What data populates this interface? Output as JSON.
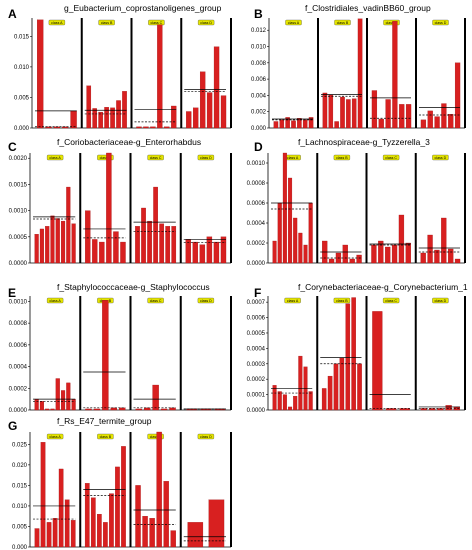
{
  "chart_data": [
    {
      "id": "A",
      "type": "bar",
      "title": "g_Eubacterium_coprostanoligenes_group",
      "ylim": [
        0,
        0.018
      ],
      "yticks": [
        "0.000",
        "0.005",
        "0.010",
        "0.015"
      ],
      "ytick_values": [
        0,
        0.005,
        0.01,
        0.015
      ],
      "groups": [
        {
          "label": "class A",
          "values": [
            0.0177,
            0.0002,
            0.0002,
            0.0002,
            0.0028
          ],
          "mean": 0.0028,
          "median": 0.0002
        },
        {
          "label": "class B",
          "values": [
            0.0069,
            0.0032,
            0.0026,
            0.0034,
            0.0033,
            0.0045,
            0.006
          ],
          "mean": 0.0029,
          "median": 0.0023
        },
        {
          "label": "class C",
          "values": [
            0.0002,
            0.0002,
            0.0002,
            0.0169,
            0.0002,
            0.0036
          ],
          "mean": 0.003,
          "median": 0.001
        },
        {
          "label": "class D",
          "values": [
            0.0027,
            0.0033,
            0.0092,
            0.0058,
            0.0133,
            0.0053
          ],
          "mean": 0.0063,
          "median": 0.006
        }
      ]
    },
    {
      "id": "B",
      "type": "bar",
      "title": "f_Clostridiales_vadinBB60_group",
      "ylim": [
        0,
        0.0135
      ],
      "yticks": [
        "0.000",
        "0.002",
        "0.004",
        "0.006",
        "0.008",
        "0.010",
        "0.012"
      ],
      "ytick_values": [
        0,
        0.002,
        0.004,
        0.006,
        0.008,
        0.01,
        0.012
      ],
      "groups": [
        {
          "label": "class A",
          "values": [
            0.0008,
            0.001,
            0.0013,
            0.0009,
            0.0012,
            0.001,
            0.0013
          ],
          "mean": 0.0011,
          "median": 0.001
        },
        {
          "label": "class B",
          "values": [
            0.0043,
            0.0041,
            0.0008,
            0.0038,
            0.0035,
            0.0036,
            0.0134
          ],
          "mean": 0.0041,
          "median": 0.0039
        },
        {
          "label": "class C",
          "values": [
            0.0046,
            0.0011,
            0.0035,
            0.0131,
            0.0029,
            0.0029
          ],
          "mean": 0.0037,
          "median": 0.0012
        },
        {
          "label": "class D",
          "values": [
            0.001,
            0.0021,
            0.0014,
            0.003,
            0.0017,
            0.008
          ],
          "mean": 0.0025,
          "median": 0.0016
        }
      ]
    },
    {
      "id": "C",
      "type": "bar",
      "title": "f_Coriobacteriaceae-g_Enterorhabdus",
      "ylim": [
        0,
        0.0021
      ],
      "yticks": [
        "0.0000",
        "0.0005",
        "0.0010",
        "0.0015",
        "0.0020"
      ],
      "ytick_values": [
        0,
        0.0005,
        0.001,
        0.0015,
        0.002
      ],
      "groups": [
        {
          "label": "class A",
          "values": [
            0.00055,
            0.00065,
            0.0007,
            0.0009,
            0.00085,
            0.0008,
            0.00145,
            0.00075
          ],
          "mean": 0.00088,
          "median": 0.00084
        },
        {
          "label": "class B",
          "values": [
            0.001,
            0.00045,
            0.0004,
            0.0021,
            0.0006,
            0.0004
          ],
          "mean": 0.00065,
          "median": 0.00048
        },
        {
          "label": "class C",
          "values": [
            0.0007,
            0.00105,
            0.0008,
            0.00145,
            0.00075,
            0.0007,
            0.0007
          ],
          "mean": 0.00078,
          "median": 0.0006
        },
        {
          "label": "class D",
          "values": [
            0.00045,
            0.0004,
            0.00035,
            0.0005,
            0.0004,
            0.0005
          ],
          "mean": 0.00045,
          "median": 0.00039
        }
      ]
    },
    {
      "id": "D",
      "type": "bar",
      "title": "f_Lachnospiraceae-g_Tyzzerella_3",
      "ylim": [
        0,
        0.0011
      ],
      "yticks": [
        "0.0000",
        "0.0002",
        "0.0004",
        "0.0006",
        "0.0008",
        "0.0010"
      ],
      "ytick_values": [
        0,
        0.0002,
        0.0004,
        0.0006,
        0.0008,
        0.001
      ],
      "groups": [
        {
          "label": "class A",
          "values": [
            0.00022,
            0.0006,
            0.0011,
            0.00085,
            0.00045,
            0.0003,
            0.00018,
            0.0006
          ],
          "mean": 0.0006,
          "median": 0.00054
        },
        {
          "label": "class B",
          "values": [
            0.00022,
            4e-05,
            0.0001,
            0.00018,
            4e-05,
            8e-05
          ],
          "mean": 0.00011,
          "median": 5e-05
        },
        {
          "label": "class C",
          "values": [
            0.00018,
            0.00022,
            0.00016,
            0.00018,
            0.00048,
            0.0002
          ],
          "mean": 0.00019,
          "median": 0.00018
        },
        {
          "label": "class D",
          "values": [
            0.0001,
            0.00028,
            0.00013,
            0.00045,
            0.00014,
            4e-05
          ],
          "mean": 0.00015,
          "median": 0.00011
        }
      ]
    },
    {
      "id": "E",
      "type": "bar",
      "title": "f_Staphylococcaceae-g_Staphylococcus",
      "ylim": [
        0,
        0.00105
      ],
      "yticks": [
        "0.0000",
        "0.0002",
        "0.0004",
        "0.0006",
        "0.0008",
        "0.0010"
      ],
      "ytick_values": [
        0,
        0.0002,
        0.0004,
        0.0006,
        0.0008,
        0.001
      ],
      "groups": [
        {
          "label": "class A",
          "values": [
            0.0001,
            8e-05,
            1e-05,
            1e-05,
            0.00029,
            0.00018,
            0.00025,
            0.0001
          ],
          "mean": 0.0001,
          "median": 8e-05
        },
        {
          "label": "class B",
          "values": [
            1e-05,
            1e-05,
            0.00101,
            2e-05,
            2e-05
          ],
          "mean": 0.00035,
          "median": 2e-05
        },
        {
          "label": "class C",
          "values": [
            1e-05,
            2e-05,
            0.00023,
            1e-05,
            2e-05
          ],
          "mean": 0.0001,
          "median": 2e-05
        },
        {
          "label": "class D",
          "values": [
            1e-05,
            1e-05,
            1e-05
          ],
          "mean": 1e-05,
          "median": 1e-05
        }
      ]
    },
    {
      "id": "F",
      "type": "bar",
      "title": "f_Corynebacteriaceae-g_Corynebacterium_1",
      "ylim": [
        0,
        0.00074
      ],
      "yticks": [
        "0.0000",
        "0.0001",
        "0.0002",
        "0.0003",
        "0.0004",
        "0.0005",
        "0.0006",
        "0.0007"
      ],
      "ytick_values": [
        0,
        0.0001,
        0.0002,
        0.0003,
        0.0004,
        0.0005,
        0.0006,
        0.0007
      ],
      "groups": [
        {
          "label": "class A",
          "values": [
            0.00016,
            0.00012,
            0.0001,
            2e-05,
            9e-05,
            0.00035,
            0.00028,
            0.00012
          ],
          "mean": 0.00014,
          "median": 0.00011
        },
        {
          "label": "class B",
          "values": [
            0.00014,
            0.00022,
            0.0003,
            0.00034,
            0.00069,
            0.00073,
            0.0003
          ],
          "mean": 0.00034,
          "median": 0.0003
        },
        {
          "label": "class C",
          "values": [
            0.00064,
            1e-05,
            1e-05
          ],
          "mean": 0.0001,
          "median": 1e-05
        },
        {
          "label": "class D",
          "values": [
            1e-05,
            1e-05,
            1e-05,
            3e-05,
            2e-05
          ],
          "mean": 2e-05,
          "median": 1e-05
        }
      ]
    },
    {
      "id": "G",
      "type": "bar",
      "title": "f_Rs_E47_termite_group",
      "ylim": [
        0,
        0.028
      ],
      "yticks": [
        "0.000",
        "0.005",
        "0.010",
        "0.015",
        "0.020",
        "0.025"
      ],
      "ytick_values": [
        0,
        0.005,
        0.01,
        0.015,
        0.02,
        0.025
      ],
      "groups": [
        {
          "label": "class A",
          "values": [
            0.0045,
            0.0255,
            0.006,
            0.007,
            0.019,
            0.0115,
            0.0065
          ],
          "mean": 0.01,
          "median": 0.0068
        },
        {
          "label": "class B",
          "values": [
            0.0155,
            0.012,
            0.008,
            0.006,
            0.013,
            0.0195,
            0.0245
          ],
          "mean": 0.014,
          "median": 0.0125
        },
        {
          "label": "class C",
          "values": [
            0.015,
            0.0075,
            0.007,
            0.028,
            0.016,
            0.004
          ],
          "mean": 0.009,
          "median": 0.0055
        },
        {
          "label": "class D",
          "values": [
            0.006,
            0.0115
          ],
          "mean": 0.0025,
          "median": 0.0015
        }
      ]
    }
  ],
  "colors": {
    "bar": "#d82020",
    "bar_edge": "#a01010",
    "label_box": "#e6e600",
    "divider": "#000000"
  }
}
